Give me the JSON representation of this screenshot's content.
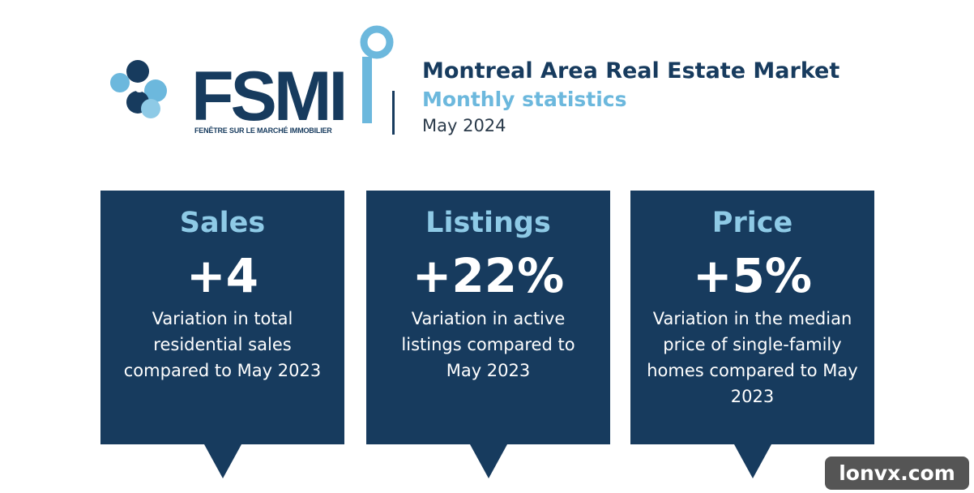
{
  "header": {
    "logo_text": "FSMI",
    "logo_subtitle": "FENÊTRE SUR LE MARCHÉ IMMOBILIER",
    "title": "Montreal Area Real Estate Market",
    "subtitle": "Monthly statistics",
    "date": "May 2024"
  },
  "cards": [
    {
      "title": "Sales",
      "value": "+4",
      "description": "Variation in total residential sales compared to May 2023"
    },
    {
      "title": "Listings",
      "value": "+22%",
      "description": "Variation in active listings compared to May 2023"
    },
    {
      "title": "Price",
      "value": "+5%",
      "description": "Variation in the median price of single-family homes compared to May 2023"
    }
  ],
  "watermark": "lonvx.com"
}
